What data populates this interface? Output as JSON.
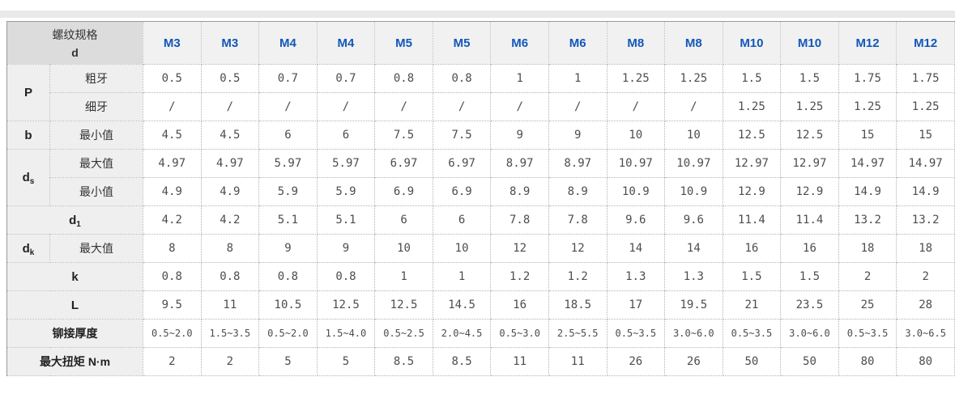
{
  "page": {
    "top_bar_color": "#e9e9e9",
    "background": "#ffffff"
  },
  "colors": {
    "header_blue": "#1257b8",
    "corner_bg": "#dcdcdc",
    "label_bg": "#efefef",
    "header_col_bg": "#f1f1f1",
    "grid_line": "#b3b3b3",
    "outer_border": "#9a9a9a",
    "data_text": "#4d4d4d"
  },
  "table": {
    "corner": {
      "line1": "螺纹规格",
      "line2": "d"
    },
    "columns": [
      "M3",
      "M3",
      "M4",
      "M4",
      "M5",
      "M5",
      "M6",
      "M6",
      "M8",
      "M8",
      "M10",
      "M10",
      "M12",
      "M12"
    ],
    "rows": [
      {
        "head": "P",
        "rowspan": 2,
        "label": "粗牙",
        "values": [
          "0.5",
          "0.5",
          "0.7",
          "0.7",
          "0.8",
          "0.8",
          "1",
          "1",
          "1.25",
          "1.25",
          "1.5",
          "1.5",
          "1.75",
          "1.75"
        ]
      },
      {
        "label": "细牙",
        "values": [
          "/",
          "/",
          "/",
          "/",
          "/",
          "/",
          "/",
          "/",
          "/",
          "/",
          "1.25",
          "1.25",
          "1.25",
          "1.25"
        ]
      },
      {
        "head": "b",
        "rowspan": 1,
        "label": "最小值",
        "values": [
          "4.5",
          "4.5",
          "6",
          "6",
          "7.5",
          "7.5",
          "9",
          "9",
          "10",
          "10",
          "12.5",
          "12.5",
          "15",
          "15"
        ]
      },
      {
        "head": "d",
        "headsub": "s",
        "rowspan": 2,
        "label": "最大值",
        "values": [
          "4.97",
          "4.97",
          "5.97",
          "5.97",
          "6.97",
          "6.97",
          "8.97",
          "8.97",
          "10.97",
          "10.97",
          "12.97",
          "12.97",
          "14.97",
          "14.97"
        ]
      },
      {
        "label": "最小值",
        "values": [
          "4.9",
          "4.9",
          "5.9",
          "5.9",
          "6.9",
          "6.9",
          "8.9",
          "8.9",
          "10.9",
          "10.9",
          "12.9",
          "12.9",
          "14.9",
          "14.9"
        ]
      },
      {
        "head": "d",
        "headsub": "1",
        "span": 2,
        "values": [
          "4.2",
          "4.2",
          "5.1",
          "5.1",
          "6",
          "6",
          "7.8",
          "7.8",
          "9.6",
          "9.6",
          "11.4",
          "11.4",
          "13.2",
          "13.2"
        ]
      },
      {
        "head": "d",
        "headsub": "k",
        "rowspan": 1,
        "label": "最大值",
        "values": [
          "8",
          "8",
          "9",
          "9",
          "10",
          "10",
          "12",
          "12",
          "14",
          "14",
          "16",
          "16",
          "18",
          "18"
        ]
      },
      {
        "head": "k",
        "span": 2,
        "values": [
          "0.8",
          "0.8",
          "0.8",
          "0.8",
          "1",
          "1",
          "1.2",
          "1.2",
          "1.3",
          "1.3",
          "1.5",
          "1.5",
          "2",
          "2"
        ]
      },
      {
        "head": "L",
        "span": 2,
        "values": [
          "9.5",
          "11",
          "10.5",
          "12.5",
          "12.5",
          "14.5",
          "16",
          "18.5",
          "17",
          "19.5",
          "21",
          "23.5",
          "25",
          "28"
        ]
      },
      {
        "head": "铆接厚度",
        "span": 2,
        "cn": true,
        "small": true,
        "values": [
          "0.5~2.0",
          "1.5~3.5",
          "0.5~2.0",
          "1.5~4.0",
          "0.5~2.5",
          "2.0~4.5",
          "0.5~3.0",
          "2.5~5.5",
          "0.5~3.5",
          "3.0~6.0",
          "0.5~3.5",
          "3.0~6.0",
          "0.5~3.5",
          "3.0~6.5"
        ]
      },
      {
        "head": "最大扭矩 N·m",
        "span": 2,
        "cn": true,
        "values": [
          "2",
          "2",
          "5",
          "5",
          "8.5",
          "8.5",
          "11",
          "11",
          "26",
          "26",
          "50",
          "50",
          "80",
          "80"
        ]
      }
    ]
  }
}
